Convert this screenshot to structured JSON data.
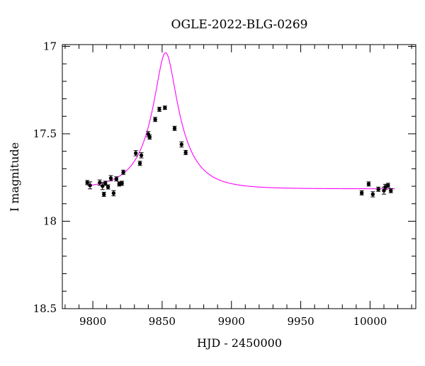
{
  "chart_data": {
    "type": "scatter",
    "title": "OGLE-2022-BLG-0269",
    "xlabel": "HJD - 2450000",
    "ylabel": "I magnitude",
    "xlim": [
      9778,
      10033
    ],
    "ylim": [
      18.5,
      16.99
    ],
    "y_inverted": true,
    "grid": false,
    "x_ticks": [
      9800,
      9850,
      9900,
      9950,
      10000
    ],
    "x_tick_labels": [
      "9800",
      "9850",
      "9900",
      "9950",
      "10000"
    ],
    "y_ticks": [
      17,
      17.5,
      18,
      18.5
    ],
    "y_tick_labels": [
      "17",
      "17.5",
      "18",
      "18.5"
    ],
    "series": [
      {
        "kind": "points",
        "color": "#000000",
        "points": [
          {
            "x": 9796,
            "y": 17.779,
            "err": 0.012
          },
          {
            "x": 9798,
            "y": 17.795,
            "err": 0.02
          },
          {
            "x": 9805,
            "y": 17.779,
            "err": 0.015
          },
          {
            "x": 9807,
            "y": 17.799,
            "err": 0.02
          },
          {
            "x": 9808,
            "y": 17.846,
            "err": 0.012
          },
          {
            "x": 9809,
            "y": 17.783,
            "err": 0.012
          },
          {
            "x": 9811,
            "y": 17.804,
            "err": 0.012
          },
          {
            "x": 9813,
            "y": 17.754,
            "err": 0.015
          },
          {
            "x": 9815,
            "y": 17.84,
            "err": 0.015
          },
          {
            "x": 9817,
            "y": 17.758,
            "err": 0.012
          },
          {
            "x": 9819,
            "y": 17.787,
            "err": 0.012
          },
          {
            "x": 9821,
            "y": 17.783,
            "err": 0.012
          },
          {
            "x": 9822,
            "y": 17.72,
            "err": 0.012
          },
          {
            "x": 9831,
            "y": 17.611,
            "err": 0.015
          },
          {
            "x": 9834,
            "y": 17.669,
            "err": 0.012
          },
          {
            "x": 9835,
            "y": 17.623,
            "err": 0.015
          },
          {
            "x": 9840,
            "y": 17.502,
            "err": 0.015
          },
          {
            "x": 9841,
            "y": 17.519,
            "err": 0.012
          },
          {
            "x": 9845,
            "y": 17.418,
            "err": 0.012
          },
          {
            "x": 9848,
            "y": 17.36,
            "err": 0.012
          },
          {
            "x": 9852,
            "y": 17.351,
            "err": 0.01
          },
          {
            "x": 9859,
            "y": 17.469,
            "err": 0.012
          },
          {
            "x": 9864,
            "y": 17.561,
            "err": 0.015
          },
          {
            "x": 9867,
            "y": 17.607,
            "err": 0.012
          },
          {
            "x": 9994,
            "y": 17.838,
            "err": 0.012
          },
          {
            "x": 9999,
            "y": 17.787,
            "err": 0.012
          },
          {
            "x": 10002,
            "y": 17.846,
            "err": 0.015
          },
          {
            "x": 10006,
            "y": 17.817,
            "err": 0.012
          },
          {
            "x": 10010,
            "y": 17.825,
            "err": 0.02
          },
          {
            "x": 10011,
            "y": 17.804,
            "err": 0.015
          },
          {
            "x": 10013,
            "y": 17.795,
            "err": 0.012
          },
          {
            "x": 10015,
            "y": 17.825,
            "err": 0.012
          }
        ]
      },
      {
        "kind": "line",
        "color": "#ff00ff",
        "model": "pspl",
        "t0": 9852.5,
        "u0": 0.29,
        "tE": 25,
        "baseline_mag": 17.815,
        "flux_scale": 0.41,
        "x_range": [
          9796,
          10018
        ]
      }
    ]
  }
}
